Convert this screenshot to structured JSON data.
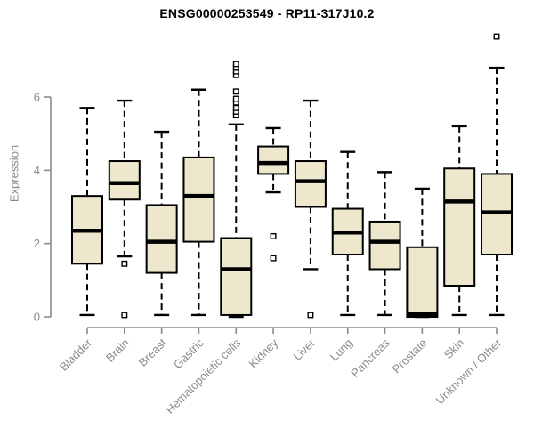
{
  "chart_data": {
    "type": "boxplot",
    "title": "ENSG00000253549 - RP11-317J10.2",
    "ylabel": "Expression",
    "xlabel": "",
    "yticks": [
      0,
      2,
      4,
      6
    ],
    "ylim": [
      0,
      7.8
    ],
    "grid": false,
    "legend": null,
    "categories": [
      "Bladder",
      "Brain",
      "Breast",
      "Gastric",
      "Hematopoietic cells",
      "Kidney",
      "Liver",
      "Lung",
      "Pancreas",
      "Prostate",
      "Skin",
      "Unknown / Other"
    ],
    "boxes": [
      {
        "category": "Bladder",
        "min": 0.05,
        "q1": 1.45,
        "median": 2.35,
        "q3": 3.3,
        "max": 5.7,
        "outliers": []
      },
      {
        "category": "Brain",
        "min": 1.65,
        "q1": 3.2,
        "median": 3.65,
        "q3": 4.25,
        "max": 5.9,
        "outliers": [
          1.45,
          0.05
        ]
      },
      {
        "category": "Breast",
        "min": 0.05,
        "q1": 1.2,
        "median": 2.05,
        "q3": 3.05,
        "max": 5.05,
        "outliers": []
      },
      {
        "category": "Gastric",
        "min": 0.05,
        "q1": 2.05,
        "median": 3.3,
        "q3": 4.35,
        "max": 6.2,
        "outliers": []
      },
      {
        "category": "Hematopoietic cells",
        "min": 0,
        "q1": 0.05,
        "median": 1.3,
        "q3": 2.15,
        "max": 5.25,
        "outliers": [
          5.5,
          5.6,
          5.7,
          5.85,
          5.95,
          6.15,
          6.6,
          6.7,
          6.8,
          6.9
        ]
      },
      {
        "category": "Kidney",
        "min": 3.4,
        "q1": 3.9,
        "median": 4.2,
        "q3": 4.65,
        "max": 5.15,
        "outliers": [
          2.2,
          1.6
        ]
      },
      {
        "category": "Liver",
        "min": 1.3,
        "q1": 3.0,
        "median": 3.7,
        "q3": 4.25,
        "max": 5.9,
        "outliers": [
          0.05
        ]
      },
      {
        "category": "Lung",
        "min": 0.05,
        "q1": 1.7,
        "median": 2.3,
        "q3": 2.95,
        "max": 4.5,
        "outliers": []
      },
      {
        "category": "Pancreas",
        "min": 0.05,
        "q1": 1.3,
        "median": 2.05,
        "q3": 2.6,
        "max": 3.95,
        "outliers": []
      },
      {
        "category": "Prostate",
        "min": 0,
        "q1": 0,
        "median": 0.07,
        "q3": 1.9,
        "max": 3.5,
        "outliers": []
      },
      {
        "category": "Skin",
        "min": 0.05,
        "q1": 0.85,
        "median": 3.15,
        "q3": 4.05,
        "max": 5.2,
        "outliers": []
      },
      {
        "category": "Unknown / Other",
        "min": 0.05,
        "q1": 1.7,
        "median": 2.85,
        "q3": 3.9,
        "max": 6.8,
        "outliers": [
          7.65
        ]
      }
    ],
    "colors": {
      "box_fill": "#ece7cd",
      "box_stroke": "#000000",
      "median": "#000000",
      "whisker": "#000000",
      "outlier_fill": "#ffffff",
      "outlier_stroke": "#000000",
      "axis": "#8b8b8b",
      "title": "#000000",
      "background": "#ffffff"
    }
  }
}
